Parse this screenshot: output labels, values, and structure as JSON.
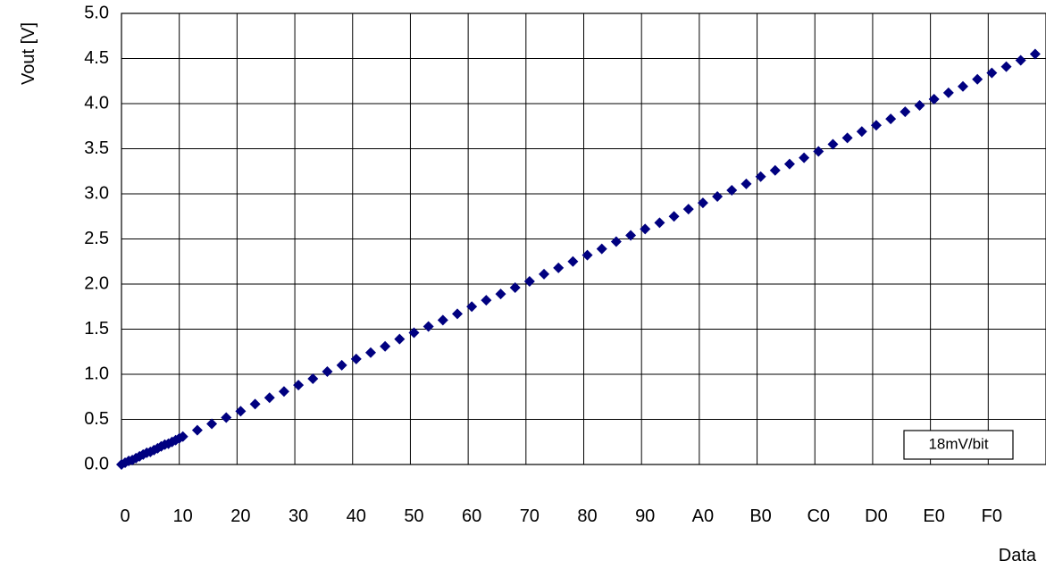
{
  "chart_data": {
    "type": "scatter",
    "title": "",
    "xlabel": "Data",
    "ylabel": "Vout [V]",
    "xlim": [
      0,
      256
    ],
    "ylim": [
      0,
      5.0
    ],
    "grid": true,
    "x_tick_values": [
      0,
      16,
      32,
      48,
      64,
      80,
      96,
      112,
      128,
      144,
      160,
      176,
      192,
      208,
      224,
      240
    ],
    "x_tick_labels": [
      "0",
      "10",
      "20",
      "30",
      "40",
      "50",
      "60",
      "70",
      "80",
      "90",
      "A0",
      "B0",
      "C0",
      "D0",
      "E0",
      "F0"
    ],
    "y_tick_values": [
      0,
      0.5,
      1.0,
      1.5,
      2.0,
      2.5,
      3.0,
      3.5,
      4.0,
      4.5,
      5.0
    ],
    "y_tick_labels": [
      "0.0",
      "0.5",
      "1.0",
      "1.5",
      "2.0",
      "2.5",
      "3.0",
      "3.5",
      "4.0",
      "4.5",
      "5.0"
    ],
    "annotation": "18mV/bit",
    "marker_color": "#000080",
    "series": [
      {
        "x": [
          0,
          1,
          2,
          3,
          4,
          5,
          6,
          7,
          8,
          9,
          10,
          11,
          12,
          13,
          14,
          15,
          16,
          17,
          21,
          25,
          29,
          33,
          37,
          41,
          45,
          49,
          53,
          57,
          61,
          65,
          69,
          73,
          77,
          81,
          85,
          89,
          93,
          97,
          101,
          105,
          109,
          113,
          117,
          121,
          125,
          129,
          133,
          137,
          141,
          145,
          149,
          153,
          157,
          161,
          165,
          169,
          173,
          177,
          181,
          185,
          189,
          193,
          197,
          201,
          205,
          209,
          213,
          217,
          221,
          225,
          229,
          233,
          237,
          241,
          245,
          249,
          253
        ],
        "y": [
          0.0,
          0.02,
          0.04,
          0.05,
          0.07,
          0.09,
          0.11,
          0.13,
          0.14,
          0.16,
          0.18,
          0.2,
          0.22,
          0.23,
          0.25,
          0.27,
          0.29,
          0.31,
          0.38,
          0.45,
          0.52,
          0.59,
          0.67,
          0.74,
          0.81,
          0.88,
          0.95,
          1.03,
          1.1,
          1.17,
          1.24,
          1.31,
          1.39,
          1.46,
          1.53,
          1.6,
          1.67,
          1.75,
          1.82,
          1.89,
          1.96,
          2.03,
          2.11,
          2.18,
          2.25,
          2.32,
          2.39,
          2.47,
          2.54,
          2.61,
          2.68,
          2.75,
          2.83,
          2.9,
          2.97,
          3.04,
          3.11,
          3.19,
          3.26,
          3.33,
          3.4,
          3.47,
          3.55,
          3.62,
          3.69,
          3.76,
          3.83,
          3.91,
          3.98,
          4.05,
          4.12,
          4.19,
          4.27,
          4.34,
          4.41,
          4.48,
          4.55
        ]
      }
    ]
  }
}
